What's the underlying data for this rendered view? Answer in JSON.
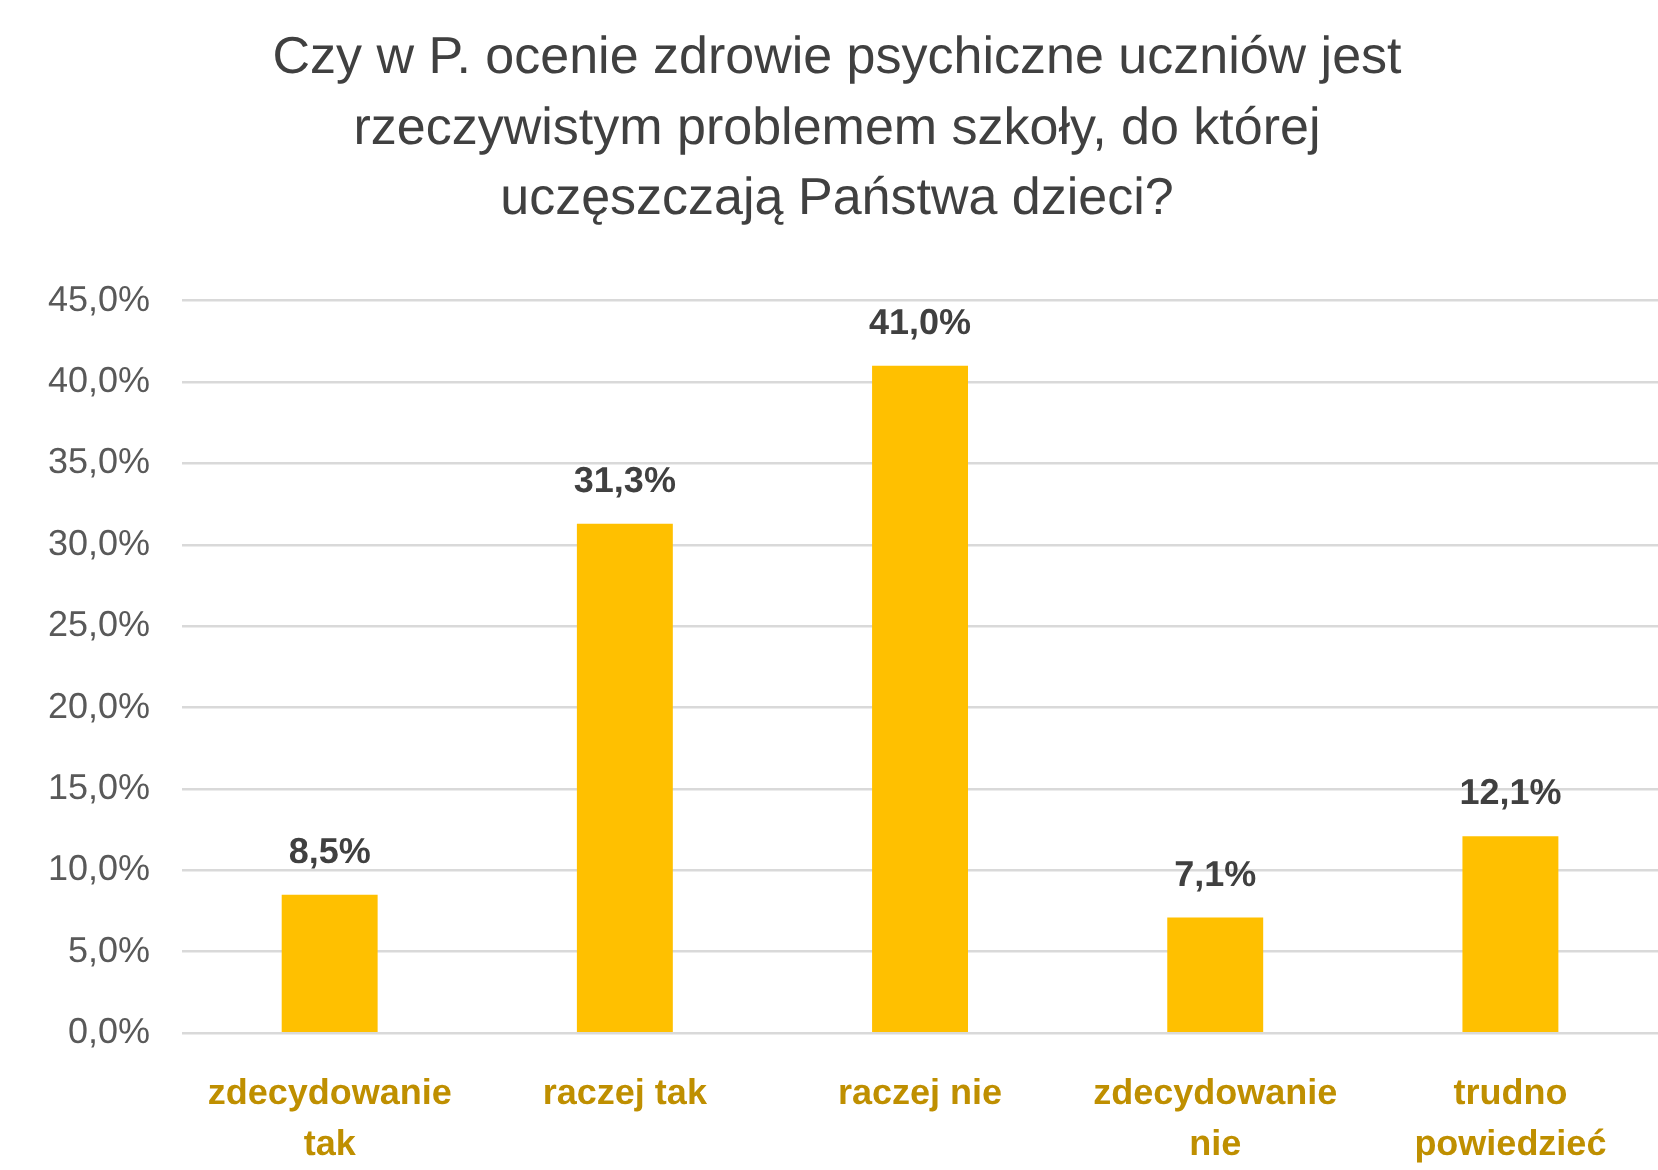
{
  "chart_data": {
    "type": "bar",
    "title": "Czy w P. ocenie zdrowie psychiczne uczniów jest rzeczywistym problemem szkoły, do której uczęszczają Państwa dzieci?",
    "categories": [
      "zdecydowanie tak",
      "raczej tak",
      "raczej nie",
      "zdecydowanie nie",
      "trudno powiedzieć"
    ],
    "values": [
      8.5,
      31.3,
      41.0,
      7.1,
      12.1
    ],
    "value_labels": [
      "8,5%",
      "31,3%",
      "41,0%",
      "7,1%",
      "12,1%"
    ],
    "color": "#ffc000",
    "ylim": [
      0,
      45
    ],
    "yticks": [
      {
        "value": 0,
        "label": "0,0%"
      },
      {
        "value": 5,
        "label": "5,0%"
      },
      {
        "value": 10,
        "label": "10,0%"
      },
      {
        "value": 15,
        "label": "15,0%"
      },
      {
        "value": 20,
        "label": "20,0%"
      },
      {
        "value": 25,
        "label": "25,0%"
      },
      {
        "value": 30,
        "label": "30,0%"
      },
      {
        "value": 35,
        "label": "35,0%"
      },
      {
        "value": 40,
        "label": "40,0%"
      },
      {
        "value": 45,
        "label": "45,0%"
      }
    ],
    "grid": "y"
  }
}
